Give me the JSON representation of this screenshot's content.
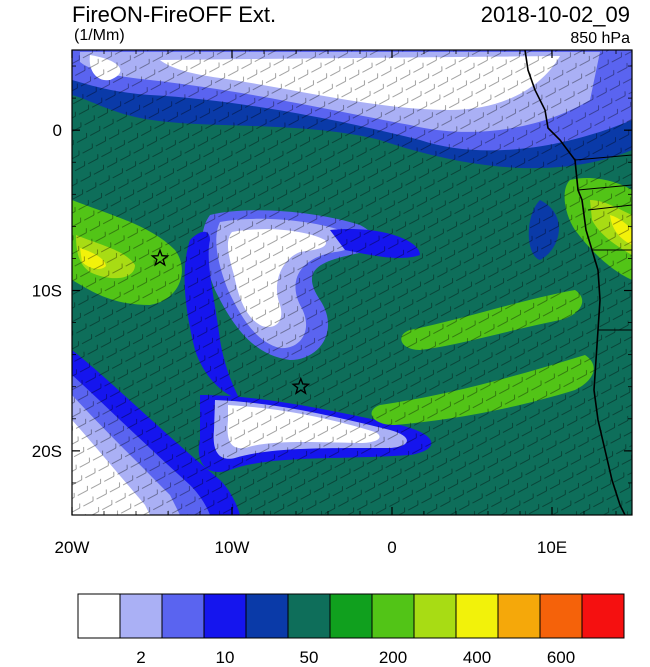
{
  "header": {
    "title": "FireON-FireOFF Ext.",
    "datetime": "2018-10-02_09",
    "units": "(1/Mm)",
    "level": "850 hPa"
  },
  "axes": {
    "x_ticks": [
      {
        "label": "20W",
        "lon": -20
      },
      {
        "label": "10W",
        "lon": -10
      },
      {
        "label": "0",
        "lon": 0
      },
      {
        "label": "10E",
        "lon": 10
      }
    ],
    "y_ticks": [
      {
        "label": "0",
        "lat": 0
      },
      {
        "label": "10S",
        "lat": -10
      },
      {
        "label": "20S",
        "lat": -20
      }
    ],
    "lon_range": [
      -20,
      15
    ],
    "lat_range": [
      -24,
      5
    ]
  },
  "colorbar": {
    "colors": [
      "#ffffff",
      "#aab0f5",
      "#5a64f0",
      "#1515ee",
      "#0a3aa8",
      "#0e6e5a",
      "#10a01e",
      "#52c417",
      "#a8dc14",
      "#f2f20a",
      "#f5a80a",
      "#f5620a",
      "#f51010"
    ],
    "labels": [
      {
        "text": "2",
        "boundary": 1
      },
      {
        "text": "10",
        "boundary": 3
      },
      {
        "text": "50",
        "boundary": 5
      },
      {
        "text": "200",
        "boundary": 7
      },
      {
        "text": "400",
        "boundary": 9
      },
      {
        "text": "600",
        "boundary": 11
      }
    ]
  },
  "markers": [
    {
      "name": "star",
      "lon": -14.5,
      "lat": -8
    },
    {
      "name": "star",
      "lon": -5.7,
      "lat": -16
    }
  ]
}
